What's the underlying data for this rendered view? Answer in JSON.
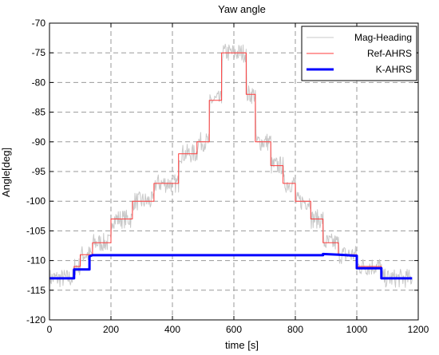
{
  "chart_data": {
    "type": "line",
    "title": "Yaw angle",
    "xlabel": "time [s]",
    "ylabel": "Angle[deg]",
    "xlim": [
      0,
      1200
    ],
    "ylim": [
      -120,
      -70
    ],
    "xticks": [
      0,
      200,
      400,
      600,
      800,
      1000,
      1200
    ],
    "yticks": [
      -120,
      -115,
      -110,
      -105,
      -100,
      -95,
      -90,
      -85,
      -80,
      -75,
      -70
    ],
    "grid": true,
    "legend_position": "top-right",
    "series": [
      {
        "name": "Mag-Heading",
        "color": "#c8c8c8",
        "noisy": true,
        "x": [
          0,
          80,
          80,
          100,
          100,
          140,
          140,
          200,
          200,
          270,
          270,
          340,
          340,
          420,
          420,
          480,
          480,
          520,
          520,
          560,
          560,
          600,
          600,
          640,
          640,
          670,
          670,
          720,
          720,
          760,
          760,
          800,
          800,
          850,
          850,
          890,
          890,
          940,
          940,
          1000,
          1000,
          1080,
          1080,
          1180
        ],
        "y": [
          -113,
          -113,
          -111,
          -111,
          -109,
          -109,
          -107,
          -107,
          -103,
          -103,
          -100,
          -100,
          -97,
          -97,
          -92,
          -92,
          -90,
          -90,
          -83,
          -83,
          -75,
          -75,
          -75,
          -75,
          -82,
          -82,
          -90,
          -90,
          -94,
          -94,
          -97,
          -97,
          -100,
          -100,
          -103,
          -103,
          -107,
          -107,
          -109,
          -109,
          -111,
          -111,
          -113,
          -113
        ]
      },
      {
        "name": "Ref-AHRS",
        "color": "#ff3b3b",
        "noisy": false,
        "x": [
          0,
          80,
          80,
          100,
          100,
          140,
          140,
          200,
          200,
          270,
          270,
          340,
          340,
          420,
          420,
          480,
          480,
          520,
          520,
          560,
          560,
          600,
          600,
          640,
          640,
          670,
          670,
          720,
          720,
          760,
          760,
          800,
          800,
          850,
          850,
          890,
          890,
          940,
          940,
          1000,
          1000,
          1080,
          1080,
          1180
        ],
        "y": [
          -113,
          -113,
          -111,
          -111,
          -109,
          -109,
          -107,
          -107,
          -103,
          -103,
          -100,
          -100,
          -97,
          -97,
          -92,
          -92,
          -90,
          -90,
          -83,
          -83,
          -75,
          -75,
          -75,
          -75,
          -82,
          -82,
          -90,
          -90,
          -94,
          -94,
          -97,
          -97,
          -100,
          -100,
          -103,
          -103,
          -107,
          -107,
          -109,
          -109,
          -111,
          -111,
          -113,
          -113
        ]
      },
      {
        "name": "K-AHRS",
        "color": "#0000ff",
        "noisy": false,
        "x": [
          0,
          80,
          80,
          130,
          130,
          140,
          140,
          890,
          890,
          940,
          940,
          1000,
          1000,
          1080,
          1080,
          1180
        ],
        "y": [
          -113,
          -113,
          -111.5,
          -111.5,
          -109.3,
          -109.1,
          -109.1,
          -109.1,
          -108.9,
          -109,
          -109,
          -109.2,
          -111.3,
          -111.3,
          -113,
          -113
        ]
      }
    ]
  }
}
